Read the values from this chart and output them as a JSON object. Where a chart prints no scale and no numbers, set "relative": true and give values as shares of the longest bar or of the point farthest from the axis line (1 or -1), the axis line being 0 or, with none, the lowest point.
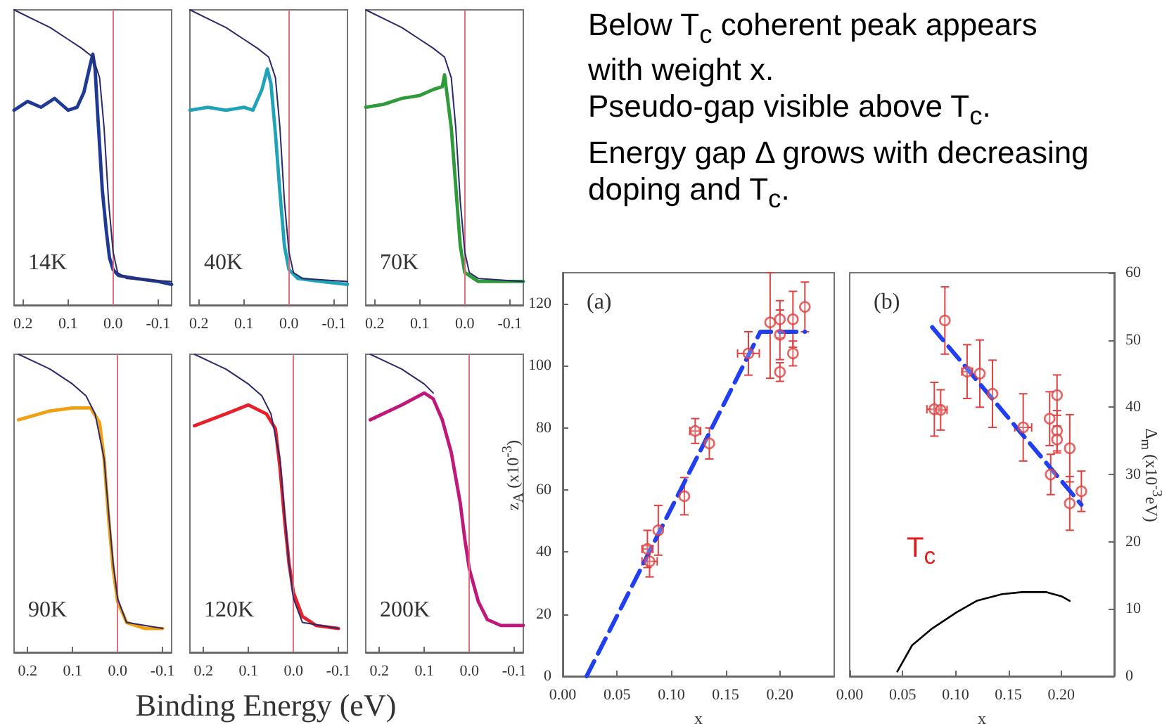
{
  "chart_data": [
    {
      "type": "line",
      "relative": true,
      "tick_labels": "x",
      "xlim": [
        0.22,
        -0.13
      ],
      "xticks": [
        0.2,
        0.1,
        {
          "value": 0,
          "label": "0.0"
        },
        -0.1
      ],
      "annotations": [
        "14K"
      ],
      "ref_lines": [
        {
          "axis": "x",
          "value": 0,
          "color": "#e07080"
        }
      ],
      "series": [
        {
          "color": "#2a2a6a",
          "x": [
            0.22,
            0.18,
            0.14,
            0.1,
            0.07,
            0.045,
            0.03,
            0.02,
            0.01,
            0.0,
            -0.01,
            -0.03,
            -0.13
          ],
          "values": [
            1.0,
            0.97,
            0.94,
            0.9,
            0.87,
            0.84,
            0.77,
            0.6,
            0.35,
            0.18,
            0.11,
            0.09,
            0.08
          ]
        },
        {
          "color": "#1f3a93",
          "x": [
            0.22,
            0.19,
            0.16,
            0.13,
            0.1,
            0.08,
            0.065,
            0.05,
            0.045,
            0.04,
            0.034,
            0.024,
            0.015,
            0.008,
            0.0,
            -0.012,
            -0.05,
            -0.1,
            -0.13
          ],
          "values": [
            0.66,
            0.69,
            0.67,
            0.7,
            0.66,
            0.67,
            0.72,
            0.82,
            0.85,
            0.8,
            0.64,
            0.39,
            0.25,
            0.16,
            0.12,
            0.1,
            0.09,
            0.08,
            0.07
          ]
        }
      ]
    },
    {
      "type": "line",
      "relative": true,
      "tick_labels": "x",
      "xlim": [
        0.22,
        -0.13
      ],
      "xticks": [
        0.2,
        0.1,
        {
          "value": 0,
          "label": "0.0"
        },
        -0.1
      ],
      "annotations": [
        "40K"
      ],
      "ref_lines": [
        {
          "axis": "x",
          "value": 0,
          "color": "#e07080"
        }
      ],
      "series": [
        {
          "color": "#2a2a6a",
          "x": [
            0.22,
            0.18,
            0.14,
            0.1,
            0.07,
            0.045,
            0.03,
            0.02,
            0.01,
            0.0,
            -0.01,
            -0.03,
            -0.13
          ],
          "values": [
            1.0,
            0.97,
            0.94,
            0.9,
            0.87,
            0.84,
            0.77,
            0.6,
            0.35,
            0.18,
            0.11,
            0.09,
            0.08
          ]
        },
        {
          "color": "#1fa3b8",
          "x": [
            0.22,
            0.18,
            0.14,
            0.1,
            0.08,
            0.06,
            0.048,
            0.04,
            0.03,
            0.02,
            0.01,
            0.0,
            -0.02,
            -0.07,
            -0.13
          ],
          "values": [
            0.66,
            0.67,
            0.66,
            0.67,
            0.66,
            0.73,
            0.8,
            0.75,
            0.58,
            0.38,
            0.2,
            0.12,
            0.09,
            0.08,
            0.07
          ]
        }
      ]
    },
    {
      "type": "line",
      "relative": true,
      "tick_labels": "x",
      "xlim": [
        0.22,
        -0.13
      ],
      "xticks": [
        0.2,
        0.1,
        {
          "value": 0,
          "label": "0.0"
        },
        -0.1
      ],
      "annotations": [
        "70K"
      ],
      "ref_lines": [
        {
          "axis": "x",
          "value": 0,
          "color": "#e07080"
        }
      ],
      "series": [
        {
          "color": "#2a2a6a",
          "x": [
            0.22,
            0.18,
            0.14,
            0.1,
            0.07,
            0.045,
            0.03,
            0.02,
            0.01,
            0.0,
            -0.01,
            -0.03,
            -0.13
          ],
          "values": [
            1.0,
            0.97,
            0.94,
            0.9,
            0.87,
            0.84,
            0.77,
            0.6,
            0.35,
            0.18,
            0.11,
            0.09,
            0.08
          ]
        },
        {
          "color": "#2e9a3a",
          "x": [
            0.22,
            0.18,
            0.14,
            0.1,
            0.07,
            0.05,
            0.045,
            0.03,
            0.02,
            0.01,
            0.0,
            -0.03,
            -0.13
          ],
          "values": [
            0.67,
            0.68,
            0.7,
            0.71,
            0.73,
            0.74,
            0.78,
            0.6,
            0.4,
            0.2,
            0.11,
            0.08,
            0.08
          ]
        }
      ]
    },
    {
      "type": "line",
      "relative": true,
      "tick_labels": "x",
      "xlim": [
        0.23,
        -0.12
      ],
      "xticks": [
        0.2,
        0.1,
        {
          "value": 0,
          "label": "0.0"
        },
        -0.1
      ],
      "annotations": [
        "90K"
      ],
      "ref_lines": [
        {
          "axis": "x",
          "value": 0,
          "color": "#e07080"
        }
      ],
      "series": [
        {
          "color": "#2a2a6a",
          "x": [
            0.22,
            0.15,
            0.1,
            0.07,
            0.05,
            0.03,
            0.02,
            0.01,
            0.0,
            -0.02,
            -0.1
          ],
          "values": [
            1.0,
            0.95,
            0.9,
            0.86,
            0.8,
            0.65,
            0.47,
            0.3,
            0.18,
            0.1,
            0.08
          ]
        },
        {
          "color": "#f0a010",
          "x": [
            0.22,
            0.15,
            0.1,
            0.06,
            0.04,
            0.03,
            0.02,
            0.01,
            0.0,
            -0.02,
            -0.06,
            -0.1
          ],
          "values": [
            0.78,
            0.81,
            0.82,
            0.82,
            0.77,
            0.65,
            0.45,
            0.28,
            0.17,
            0.1,
            0.08,
            0.08
          ]
        }
      ]
    },
    {
      "type": "line",
      "relative": true,
      "tick_labels": "x",
      "xlim": [
        0.23,
        -0.12
      ],
      "xticks": [
        0.2,
        0.1,
        {
          "value": 0,
          "label": "0.0"
        },
        -0.1
      ],
      "xlabel": "Binding Energy (eV)",
      "annotations": [
        "120K"
      ],
      "ref_lines": [
        {
          "axis": "x",
          "value": 0,
          "color": "#e07080"
        }
      ],
      "series": [
        {
          "color": "#2a2a6a",
          "x": [
            0.22,
            0.15,
            0.1,
            0.07,
            0.05,
            0.03,
            0.02,
            0.01,
            0.0,
            -0.02,
            -0.1
          ],
          "values": [
            1.0,
            0.95,
            0.9,
            0.86,
            0.8,
            0.65,
            0.47,
            0.3,
            0.18,
            0.1,
            0.08
          ]
        },
        {
          "color": "#e8202a",
          "x": [
            0.22,
            0.15,
            0.1,
            0.06,
            0.04,
            0.03,
            0.02,
            0.01,
            0.0,
            -0.02,
            -0.05,
            -0.1
          ],
          "values": [
            0.76,
            0.8,
            0.83,
            0.8,
            0.75,
            0.62,
            0.45,
            0.3,
            0.2,
            0.12,
            0.09,
            0.08
          ]
        }
      ]
    },
    {
      "type": "line",
      "relative": true,
      "tick_labels": "x",
      "xlim": [
        0.23,
        -0.12
      ],
      "xticks": [
        0.2,
        0.1,
        {
          "value": 0,
          "label": "0.0"
        },
        -0.1
      ],
      "annotations": [
        "200K"
      ],
      "ref_lines": [
        {
          "axis": "x",
          "value": 0,
          "color": "#e07080"
        }
      ],
      "series": [
        {
          "color": "#2a2a6a",
          "x": [
            0.22,
            0.15,
            0.1,
            0.08
          ],
          "values": [
            1.0,
            0.95,
            0.9,
            0.87
          ]
        },
        {
          "color": "#c0187a",
          "x": [
            0.22,
            0.15,
            0.1,
            0.08,
            0.06,
            0.04,
            0.02,
            0.01,
            0.0,
            -0.02,
            -0.04,
            -0.07,
            -0.12
          ],
          "values": [
            0.78,
            0.83,
            0.87,
            0.85,
            0.78,
            0.67,
            0.5,
            0.38,
            0.28,
            0.17,
            0.11,
            0.09,
            0.09
          ]
        }
      ]
    },
    {
      "type": "other",
      "annotations": [
        "Below T$_{c}$ coherent peak appears with weight x.",
        "Pseudo-gap visible above T$_{c}$.",
        "Energy gap Δ grows with decreasing doping and T$_{c}$."
      ]
    },
    {
      "type": "scatter",
      "title": "(a)",
      "xlabel": "x",
      "ylabel": "z$_{A}$ (x10$^{-3}$)",
      "xlim": [
        0,
        0.25
      ],
      "xticks": [
        {
          "value": 0,
          "label": "0.00"
        },
        {
          "value": 0.05,
          "label": "0.05"
        },
        {
          "value": 0.1,
          "label": "0.10"
        },
        {
          "value": 0.15,
          "label": "0.15"
        },
        {
          "value": 0.2,
          "label": "0.20"
        }
      ],
      "ylim": [
        0,
        130
      ],
      "yticks": [
        0,
        20,
        40,
        60,
        80,
        100,
        120
      ],
      "series": [
        {
          "type": "scatter",
          "marker": "circle",
          "color": "#e04040",
          "x": [
            0.078,
            0.08,
            0.088,
            0.112,
            0.122,
            0.135,
            0.171,
            0.191,
            0.2,
            0.2,
            0.2,
            0.212,
            0.212,
            0.223
          ],
          "values": [
            41,
            37,
            47,
            58,
            79,
            75,
            104,
            114,
            115,
            110,
            98,
            115,
            104,
            119
          ],
          "errors": [
            6,
            5,
            8,
            6,
            4,
            5,
            7,
            [
              96,
              130
            ],
            6,
            8,
            3,
            9,
            4,
            8
          ],
          "xerrors": [
            0.005,
            0.007,
            null,
            null,
            0.005,
            null,
            0.01,
            null,
            null,
            null,
            null,
            null,
            null,
            null
          ]
        },
        {
          "type": "line",
          "line_style": "dashed",
          "color": "#2040f0",
          "x": [
            0.022,
            0.182,
            0.223
          ],
          "values": [
            0,
            111,
            111
          ]
        }
      ]
    },
    {
      "type": "scatter",
      "title": "(b)",
      "xlabel": "x",
      "y2label": "Δ$_{m}$ (x10$^{-3}$eV)",
      "xlim": [
        0,
        0.25
      ],
      "xticks": [
        {
          "value": 0,
          "label": "0.00"
        },
        {
          "value": 0.05,
          "label": "0.05"
        },
        {
          "value": 0.1,
          "label": "0.10"
        },
        {
          "value": 0.15,
          "label": "0.15"
        },
        {
          "value": 0.2,
          "label": "0.20"
        }
      ],
      "y2lim": [
        0,
        60
      ],
      "y2ticks": [
        0,
        10,
        20,
        30,
        40,
        50,
        60
      ],
      "annotations": [
        "T$_{c}$"
      ],
      "series": [
        {
          "type": "scatter",
          "axis": "y2",
          "marker": "circle",
          "color": "#e04040",
          "x": [
            0.08,
            0.086,
            0.09,
            0.111,
            0.123,
            0.135,
            0.164,
            0.189,
            0.19,
            0.196,
            0.196,
            0.196,
            0.208,
            0.208,
            0.219
          ],
          "values": [
            39.7,
            39.6,
            52.9,
            45.3,
            45.0,
            42.0,
            37.0,
            38.3,
            30.0,
            41.8,
            36.5,
            35.2,
            33.9,
            25.7,
            27.5
          ],
          "errors": [
            4,
            3,
            5,
            4,
            5,
            5,
            5,
            4,
            3,
            3,
            3,
            2,
            5,
            4,
            3
          ],
          "xerrors": [
            0.007,
            0.006,
            null,
            0.005,
            null,
            null,
            0.008,
            null,
            null,
            null,
            null,
            null,
            null,
            null,
            null
          ]
        },
        {
          "type": "line",
          "axis": "y2",
          "line_style": "dashed",
          "color": "#2040f0",
          "x": [
            0.078,
            0.219
          ],
          "values": [
            51.9,
            25.5
          ]
        },
        {
          "type": "line",
          "axis": "y2",
          "color": "#000000",
          "x": [
            0.045,
            0.059,
            0.078,
            0.101,
            0.12,
            0.144,
            0.163,
            0.186,
            0.2,
            0.208
          ],
          "values": [
            0.7,
            4.6,
            7.1,
            9.5,
            11.2,
            12.2,
            12.5,
            12.5,
            11.9,
            11.2
          ]
        }
      ]
    }
  ]
}
